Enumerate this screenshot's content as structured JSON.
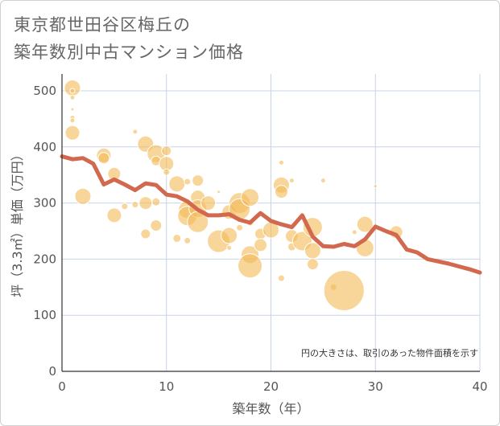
{
  "title_line1": "東京都世田谷区梅丘の",
  "title_line2": "築年数別中古マンション価格",
  "chart_data": {
    "type": "scatter",
    "xlabel": "築年数（年）",
    "ylabel": "坪（3.3㎡）単価（万円）",
    "xlim": [
      0,
      40
    ],
    "ylim": [
      0,
      530
    ],
    "x_ticks": [
      0,
      10,
      20,
      30,
      40
    ],
    "y_ticks": [
      0,
      100,
      200,
      300,
      400,
      500
    ],
    "grid": true,
    "annotation": "円の大きさは、取引のあった物件面積を示す",
    "colors": {
      "bubble": "#f3bb5a",
      "line": "#d2694e",
      "grid": "#c8d4e4",
      "axis": "#333333"
    },
    "line_series": {
      "x": [
        0,
        1,
        2,
        3,
        4,
        5,
        6,
        7,
        8,
        9,
        10,
        11,
        12,
        13,
        14,
        15,
        16,
        17,
        18,
        19,
        20,
        21,
        22,
        23,
        24,
        25,
        26,
        27,
        28,
        29,
        30,
        31,
        32,
        33,
        34,
        35,
        36,
        37,
        38,
        39,
        40
      ],
      "y": [
        383,
        378,
        380,
        370,
        333,
        342,
        333,
        323,
        335,
        332,
        315,
        312,
        303,
        288,
        278,
        278,
        280,
        270,
        265,
        282,
        268,
        262,
        257,
        278,
        240,
        223,
        222,
        227,
        223,
        235,
        258,
        250,
        243,
        217,
        212,
        200,
        196,
        192,
        187,
        182,
        176
      ]
    },
    "bubbles": [
      {
        "x": 1,
        "y": 505,
        "size": 10
      },
      {
        "x": 1,
        "y": 500,
        "size": 3
      },
      {
        "x": 1,
        "y": 488,
        "size": 3
      },
      {
        "x": 1,
        "y": 467,
        "size": 2
      },
      {
        "x": 1,
        "y": 452,
        "size": 3
      },
      {
        "x": 1,
        "y": 447,
        "size": 3
      },
      {
        "x": 1,
        "y": 425,
        "size": 9
      },
      {
        "x": 2,
        "y": 312,
        "size": 10
      },
      {
        "x": 4,
        "y": 385,
        "size": 9
      },
      {
        "x": 4,
        "y": 380,
        "size": 7
      },
      {
        "x": 5,
        "y": 352,
        "size": 8
      },
      {
        "x": 5,
        "y": 278,
        "size": 9
      },
      {
        "x": 6,
        "y": 294,
        "size": 4
      },
      {
        "x": 7,
        "y": 427,
        "size": 3
      },
      {
        "x": 7,
        "y": 297,
        "size": 4
      },
      {
        "x": 8,
        "y": 405,
        "size": 10
      },
      {
        "x": 8,
        "y": 300,
        "size": 8
      },
      {
        "x": 8,
        "y": 245,
        "size": 6
      },
      {
        "x": 9,
        "y": 388,
        "size": 11
      },
      {
        "x": 9,
        "y": 375,
        "size": 6
      },
      {
        "x": 9,
        "y": 302,
        "size": 5
      },
      {
        "x": 9,
        "y": 260,
        "size": 7
      },
      {
        "x": 10,
        "y": 393,
        "size": 6
      },
      {
        "x": 10,
        "y": 370,
        "size": 9
      },
      {
        "x": 10,
        "y": 355,
        "size": 4
      },
      {
        "x": 11,
        "y": 334,
        "size": 10
      },
      {
        "x": 11,
        "y": 237,
        "size": 5
      },
      {
        "x": 12,
        "y": 338,
        "size": 4
      },
      {
        "x": 12,
        "y": 288,
        "size": 11
      },
      {
        "x": 12,
        "y": 277,
        "size": 12
      },
      {
        "x": 12,
        "y": 233,
        "size": 4
      },
      {
        "x": 13,
        "y": 340,
        "size": 7
      },
      {
        "x": 13,
        "y": 310,
        "size": 9
      },
      {
        "x": 13,
        "y": 290,
        "size": 11
      },
      {
        "x": 13,
        "y": 266,
        "size": 13
      },
      {
        "x": 14,
        "y": 300,
        "size": 9
      },
      {
        "x": 15,
        "y": 320,
        "size": 2
      },
      {
        "x": 15,
        "y": 232,
        "size": 14
      },
      {
        "x": 16,
        "y": 284,
        "size": 9
      },
      {
        "x": 16,
        "y": 242,
        "size": 10
      },
      {
        "x": 16,
        "y": 220,
        "size": 3
      },
      {
        "x": 17,
        "y": 300,
        "size": 13
      },
      {
        "x": 17,
        "y": 289,
        "size": 13
      },
      {
        "x": 17,
        "y": 256,
        "size": 4
      },
      {
        "x": 18,
        "y": 310,
        "size": 11
      },
      {
        "x": 18,
        "y": 265,
        "size": 4
      },
      {
        "x": 18,
        "y": 208,
        "size": 11
      },
      {
        "x": 18,
        "y": 188,
        "size": 15
      },
      {
        "x": 19,
        "y": 245,
        "size": 7
      },
      {
        "x": 19,
        "y": 225,
        "size": 8
      },
      {
        "x": 20,
        "y": 252,
        "size": 10
      },
      {
        "x": 21,
        "y": 372,
        "size": 3
      },
      {
        "x": 21,
        "y": 332,
        "size": 10
      },
      {
        "x": 21,
        "y": 320,
        "size": 8
      },
      {
        "x": 21,
        "y": 166,
        "size": 4
      },
      {
        "x": 22,
        "y": 340,
        "size": 3
      },
      {
        "x": 22,
        "y": 241,
        "size": 8
      },
      {
        "x": 22,
        "y": 222,
        "size": 5
      },
      {
        "x": 23,
        "y": 232,
        "size": 12
      },
      {
        "x": 24,
        "y": 257,
        "size": 12
      },
      {
        "x": 24,
        "y": 215,
        "size": 10
      },
      {
        "x": 24,
        "y": 191,
        "size": 7
      },
      {
        "x": 25,
        "y": 340,
        "size": 3
      },
      {
        "x": 26,
        "y": 150,
        "size": 4
      },
      {
        "x": 27,
        "y": 144,
        "size": 25
      },
      {
        "x": 28,
        "y": 248,
        "size": 3
      },
      {
        "x": 29,
        "y": 262,
        "size": 10
      },
      {
        "x": 29,
        "y": 220,
        "size": 11
      },
      {
        "x": 30,
        "y": 330,
        "size": 2
      },
      {
        "x": 32,
        "y": 248,
        "size": 8
      }
    ]
  }
}
